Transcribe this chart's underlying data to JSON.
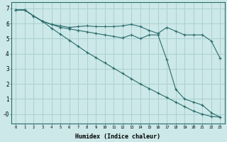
{
  "xlabel": "Humidex (Indice chaleur)",
  "background_color": "#cce8e8",
  "grid_color": "#aad0d0",
  "line_color": "#2a6b6b",
  "xlim": [
    -0.5,
    23.5
  ],
  "ylim": [
    -0.6,
    7.4
  ],
  "xticks": [
    0,
    1,
    2,
    3,
    4,
    5,
    6,
    7,
    8,
    9,
    10,
    11,
    12,
    13,
    14,
    15,
    16,
    17,
    18,
    19,
    20,
    21,
    22,
    23
  ],
  "yticks": [
    0,
    1,
    2,
    3,
    4,
    5,
    6,
    7
  ],
  "ytick_labels": [
    "-0",
    "1",
    "2",
    "3",
    "4",
    "5",
    "6",
    "7"
  ],
  "series1_x": [
    0,
    1,
    2,
    3,
    4,
    5,
    6,
    7,
    8,
    9,
    10,
    11,
    12,
    13,
    14,
    15,
    16,
    17,
    18,
    19,
    20,
    21,
    22,
    23
  ],
  "series1_y": [
    6.9,
    6.9,
    6.5,
    6.15,
    5.95,
    5.85,
    5.75,
    5.8,
    5.85,
    5.8,
    5.8,
    5.8,
    5.85,
    5.95,
    5.8,
    5.55,
    5.35,
    5.75,
    5.5,
    5.25,
    5.25,
    5.25,
    4.85,
    3.7
  ],
  "series2_x": [
    0,
    1,
    2,
    3,
    4,
    5,
    6,
    7,
    8,
    9,
    10,
    11,
    12,
    13,
    14,
    15,
    16,
    17,
    18,
    19,
    20,
    21,
    22,
    23
  ],
  "series2_y": [
    6.9,
    6.9,
    6.5,
    6.15,
    5.7,
    5.3,
    4.9,
    4.5,
    4.1,
    3.75,
    3.4,
    3.05,
    2.7,
    2.35,
    2.0,
    1.7,
    1.4,
    1.1,
    0.8,
    0.5,
    0.2,
    0.0,
    -0.15,
    -0.2
  ],
  "series3_x": [
    0,
    1,
    2,
    3,
    4,
    5,
    6,
    7,
    8,
    9,
    10,
    11,
    12,
    13,
    14,
    15,
    16,
    17,
    18,
    19,
    20,
    21,
    22,
    23
  ],
  "series3_y": [
    6.9,
    6.9,
    6.5,
    6.15,
    5.95,
    5.75,
    5.65,
    5.55,
    5.45,
    5.35,
    5.25,
    5.15,
    5.05,
    5.25,
    5.0,
    5.25,
    5.25,
    3.6,
    1.65,
    1.0,
    0.8,
    0.6,
    0.1,
    -0.2
  ]
}
